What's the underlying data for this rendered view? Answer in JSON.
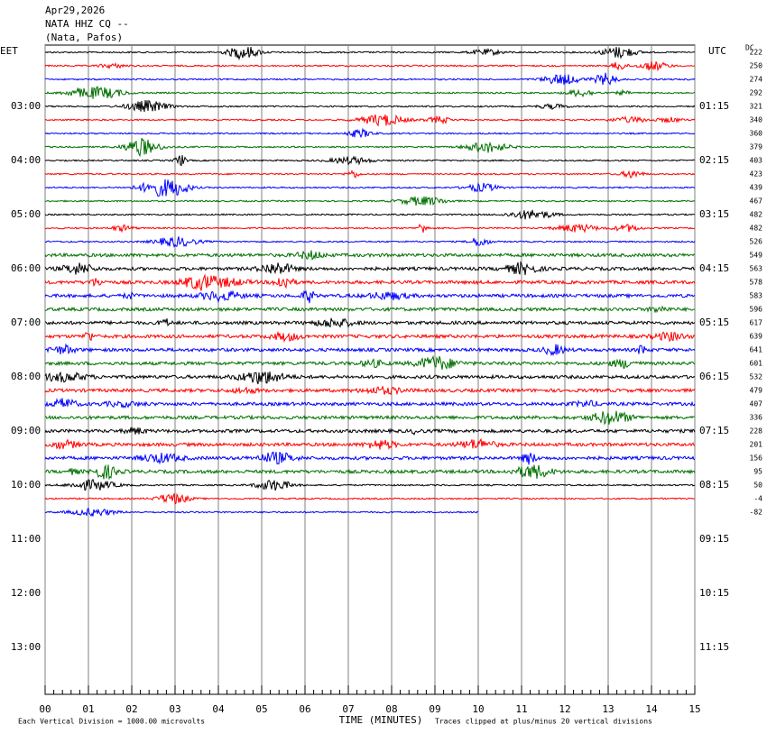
{
  "header": {
    "date": "Apr29,2026",
    "station": "NATA HHZ CQ --",
    "location": "(Nata, Pafos)"
  },
  "left_zone": "EET",
  "right_zone": "UTC",
  "dc_title": "DC",
  "left_labels": [
    "03:00",
    "04:00",
    "05:00",
    "06:00",
    "07:00",
    "08:00",
    "09:00",
    "10:00",
    "11:00",
    "12:00",
    "13:00"
  ],
  "right_labels": [
    "01:15",
    "02:15",
    "03:15",
    "04:15",
    "05:15",
    "06:15",
    "07:15",
    "08:15",
    "09:15",
    "10:15",
    "11:15"
  ],
  "dc_values": [
    "222",
    "250",
    "274",
    "292",
    "321",
    "340",
    "360",
    "379",
    "403",
    "423",
    "439",
    "467",
    "482",
    "482",
    "526",
    "549",
    "563",
    "578",
    "583",
    "596",
    "617",
    "639",
    "641",
    "601",
    "532",
    "479",
    "407",
    "336",
    "228",
    "201",
    "156",
    "95",
    "50",
    "-4",
    "-82"
  ],
  "x_ticks": [
    "00",
    "01",
    "02",
    "03",
    "04",
    "05",
    "06",
    "07",
    "08",
    "09",
    "10",
    "11",
    "12",
    "13",
    "14",
    "15"
  ],
  "x_title": "TIME (MINUTES)",
  "footer_left": "Each Vertical Division = 1000.00 microvolts",
  "footer_right": "Traces clipped at plus/minus 20 vertical divisions"
}
